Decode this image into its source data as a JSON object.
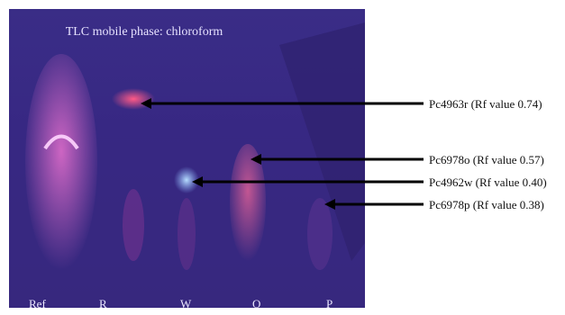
{
  "figure": {
    "title": "TLC mobile phase: chloroform",
    "lanes": [
      "Ref",
      "R",
      "W",
      "O",
      "P"
    ],
    "annotations": [
      {
        "label": "Pc4963r (Rf value 0.74)"
      },
      {
        "label": "Pc6978o (Rf value 0.57)"
      },
      {
        "label": "Pc4962w (Rf value 0.40)"
      },
      {
        "label": "Pc6978p (Rf value 0.38)"
      }
    ]
  }
}
